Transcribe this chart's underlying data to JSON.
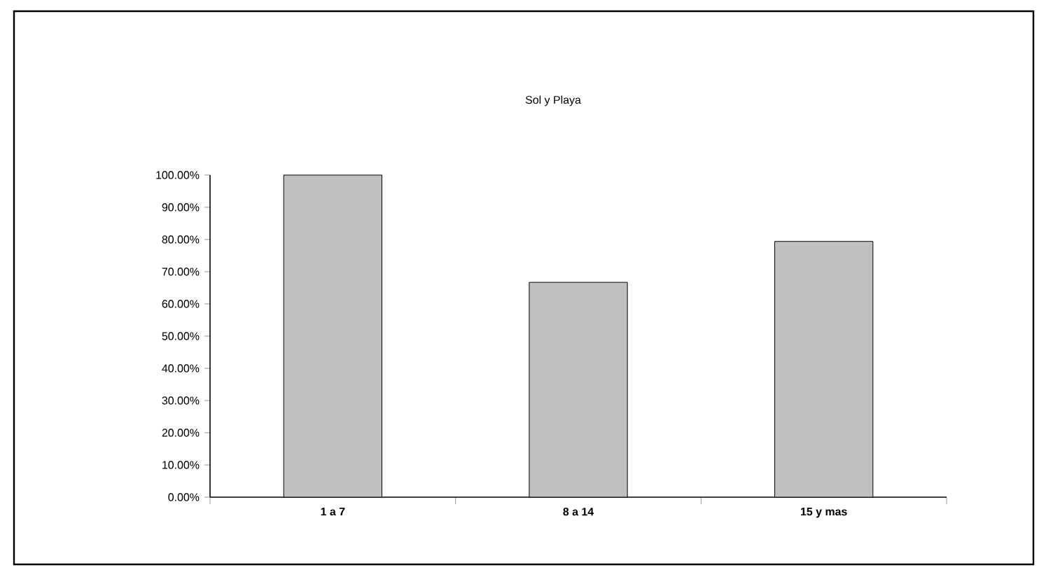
{
  "chart_data": {
    "type": "bar",
    "title": "Sol y Playa",
    "categories": [
      "1 a 7",
      "8 a 14",
      "15 y mas"
    ],
    "values": [
      100,
      66.7,
      79.4
    ],
    "color": "#c0c0c0",
    "ylim": [
      0,
      100
    ],
    "yticks": [
      {
        "value": 0,
        "label": "0.00%"
      },
      {
        "value": 10,
        "label": "10.00%"
      },
      {
        "value": 20,
        "label": "20.00%"
      },
      {
        "value": 30,
        "label": "30.00%"
      },
      {
        "value": 40,
        "label": "40.00%"
      },
      {
        "value": 50,
        "label": "50.00%"
      },
      {
        "value": 60,
        "label": "60.00%"
      },
      {
        "value": 70,
        "label": "70.00%"
      },
      {
        "value": 80,
        "label": "80.00%"
      },
      {
        "value": 90,
        "label": "90.00%"
      },
      {
        "value": 100,
        "label": "100.00%"
      }
    ],
    "grid": false
  }
}
